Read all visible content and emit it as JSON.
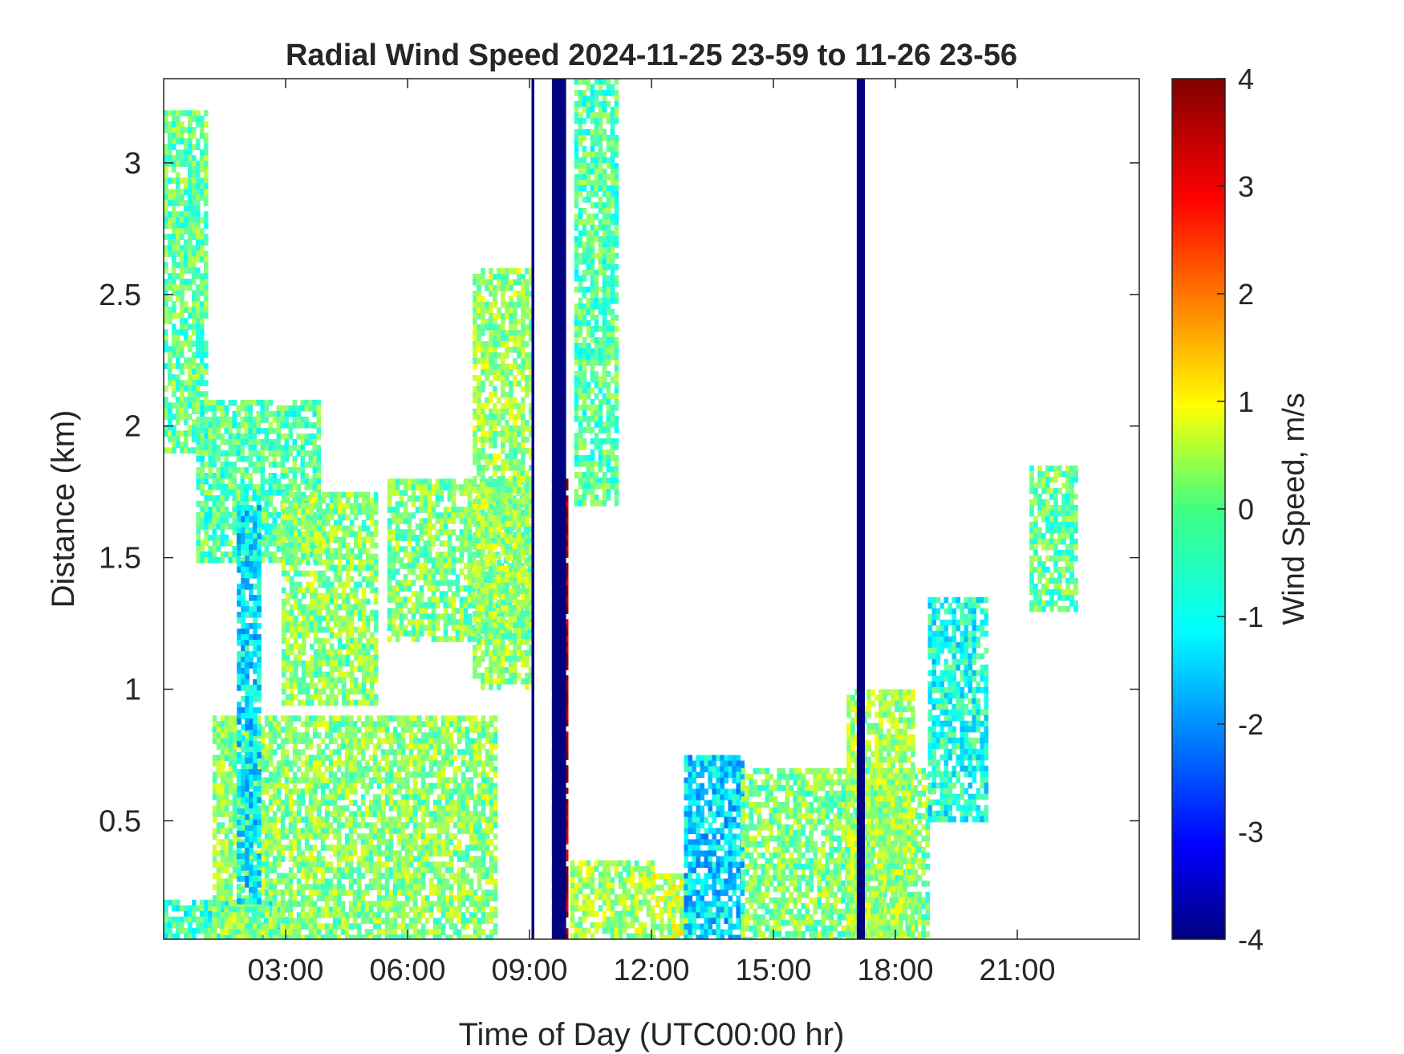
{
  "chart_data": {
    "type": "heatmap",
    "title": "Radial Wind Speed 2024-11-25 23-59 to 11-26 23-56",
    "xlabel": "Time of Day (UTC00:00 hr)",
    "ylabel": "Distance (km)",
    "xlim": [
      0,
      24
    ],
    "ylim": [
      0.05,
      3.32
    ],
    "x_ticks": [
      3,
      6,
      9,
      12,
      15,
      18,
      21
    ],
    "x_tick_labels": [
      "03:00",
      "06:00",
      "09:00",
      "12:00",
      "15:00",
      "18:00",
      "21:00"
    ],
    "y_ticks": [
      0.5,
      1,
      1.5,
      2,
      2.5,
      3
    ],
    "y_tick_labels": [
      "0.5",
      "1",
      "1.5",
      "2",
      "2.5",
      "3"
    ],
    "colorbar": {
      "label": "Wind Speed, m/s",
      "range": [
        -4,
        4
      ],
      "ticks": [
        -4,
        -3,
        -2,
        -1,
        0,
        1,
        2,
        3,
        4
      ],
      "tick_labels": [
        "-4",
        "-3",
        "-2",
        "-1",
        "0",
        "1",
        "2",
        "3",
        "4"
      ],
      "colormap": "jet"
    },
    "grid": false,
    "regions": [
      {
        "x": [
          0,
          3.1
        ],
        "y": [
          0.05,
          0.2
        ],
        "value": -0.6
      },
      {
        "x": [
          1.2,
          8.2
        ],
        "y": [
          0.05,
          0.9
        ],
        "value": 0.1
      },
      {
        "x": [
          0,
          1.0
        ],
        "y": [
          1.9,
          3.2
        ],
        "value": -0.2
      },
      {
        "x": [
          0.8,
          3.8
        ],
        "y": [
          1.5,
          2.1
        ],
        "value": -0.3
      },
      {
        "x": [
          2.9,
          5.2
        ],
        "y": [
          0.95,
          1.75
        ],
        "value": 0.1
      },
      {
        "x": [
          5.5,
          9.0
        ],
        "y": [
          1.2,
          1.8
        ],
        "value": 0.0
      },
      {
        "x": [
          7.6,
          9.0
        ],
        "y": [
          1.0,
          2.6
        ],
        "value": 0.2
      },
      {
        "x": [
          1.8,
          2.3
        ],
        "y": [
          0.2,
          1.7
        ],
        "value": -1.2
      },
      {
        "x": [
          9.55,
          9.9
        ],
        "y": [
          0.05,
          1.8
        ],
        "value": 3.8
      },
      {
        "x": [
          10.0,
          12.0
        ],
        "y": [
          0.05,
          0.35
        ],
        "value": 0.3
      },
      {
        "x": [
          10.1,
          11.1
        ],
        "y": [
          1.7,
          3.32
        ],
        "value": -0.3
      },
      {
        "x": [
          12.0,
          12.8
        ],
        "y": [
          0.05,
          0.3
        ],
        "value": 0.5
      },
      {
        "x": [
          12.8,
          14.2
        ],
        "y": [
          0.05,
          0.75
        ],
        "value": -1.3
      },
      {
        "x": [
          14.2,
          18.8
        ],
        "y": [
          0.05,
          0.7
        ],
        "value": 0.0
      },
      {
        "x": [
          16.8,
          18.4
        ],
        "y": [
          0.05,
          1.0
        ],
        "value": 0.3
      },
      {
        "x": [
          18.8,
          20.2
        ],
        "y": [
          0.5,
          1.35
        ],
        "value": -0.8
      },
      {
        "x": [
          21.3,
          22.4
        ],
        "y": [
          1.3,
          1.85
        ],
        "value": -0.2
      }
    ],
    "missing_bands": [
      {
        "x": [
          9.05,
          9.12
        ],
        "value": -4
      },
      {
        "x": [
          9.55,
          9.9
        ],
        "value": -4
      },
      {
        "x": [
          17.05,
          17.25
        ],
        "value": -4
      }
    ]
  }
}
